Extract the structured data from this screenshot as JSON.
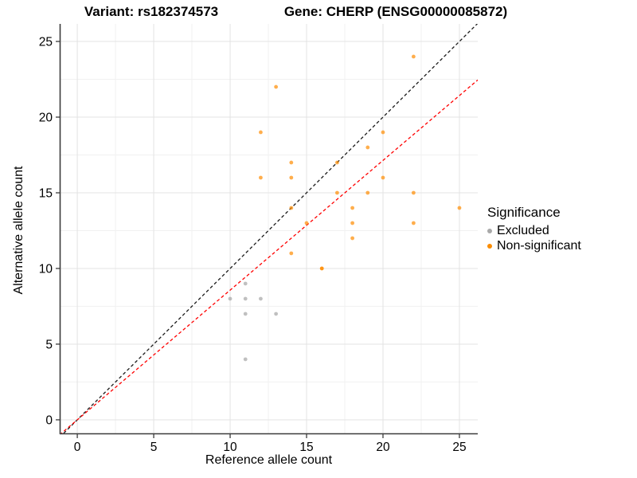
{
  "header": {
    "title_left": "Variant: rs182374573",
    "title_right": "Gene: CHERP (ENSG00000085872)"
  },
  "chart_data": {
    "type": "scatter",
    "title_left": "Variant: rs182374573",
    "title_right": "Gene: CHERP (ENSG00000085872)",
    "xlabel": "Reference allele count",
    "ylabel": "Alternative allele count",
    "x_domain": [
      -1.15,
      26.2
    ],
    "y_domain": [
      -0.95,
      26.16
    ],
    "x_major_ticks": [
      0,
      5,
      10,
      15,
      20,
      25
    ],
    "y_major_ticks": [
      0,
      5,
      10,
      15,
      20,
      25
    ],
    "x_minor_ticks": [
      2.5,
      7.5,
      12.5,
      17.5,
      22.5
    ],
    "y_minor_ticks": [
      2.5,
      7.5,
      12.5,
      17.5,
      22.5
    ],
    "grid": {
      "major_color": "#E3E3E3",
      "minor_color": "#F1F1F1"
    },
    "axis_color": "#3C3C3C",
    "tick_label_color": "#000000",
    "point_radius": 2.4,
    "series": [
      {
        "name": "Excluded",
        "color": "#8C8C8C",
        "opacity": 0.55,
        "points": [
          [
            10,
            8
          ],
          [
            11,
            4
          ],
          [
            11,
            7
          ],
          [
            11,
            8
          ],
          [
            11,
            9
          ],
          [
            12,
            8
          ],
          [
            13,
            7
          ]
        ]
      },
      {
        "name": "Non-significant",
        "color": "#FF8C00",
        "opacity": 0.7,
        "points": [
          [
            12,
            16
          ],
          [
            12,
            19
          ],
          [
            13,
            22
          ],
          [
            14,
            11
          ],
          [
            14,
            14
          ],
          [
            14,
            16
          ],
          [
            14,
            17
          ],
          [
            15,
            13
          ],
          [
            16,
            10
          ],
          [
            16,
            10
          ],
          [
            17,
            15
          ],
          [
            17,
            17
          ],
          [
            18,
            12
          ],
          [
            18,
            13
          ],
          [
            18,
            14
          ],
          [
            19,
            15
          ],
          [
            19,
            18
          ],
          [
            20,
            16
          ],
          [
            20,
            19
          ],
          [
            22,
            13
          ],
          [
            22,
            15
          ],
          [
            22,
            24
          ],
          [
            25,
            14
          ]
        ]
      }
    ],
    "reference_lines": [
      {
        "name": "identity-line",
        "slope": 1,
        "intercept": 0,
        "color": "#1A1A1A",
        "dash": "4 3"
      },
      {
        "name": "fit-line",
        "slope": 0.857,
        "intercept": 0,
        "color": "#FF0000",
        "dash": "4 3"
      }
    ],
    "legend": {
      "title": "Significance",
      "position": "right",
      "entries": [
        {
          "label": "Excluded",
          "color": "#A9A9A9"
        },
        {
          "label": "Non-significant",
          "color": "#FB8C00"
        }
      ]
    }
  }
}
